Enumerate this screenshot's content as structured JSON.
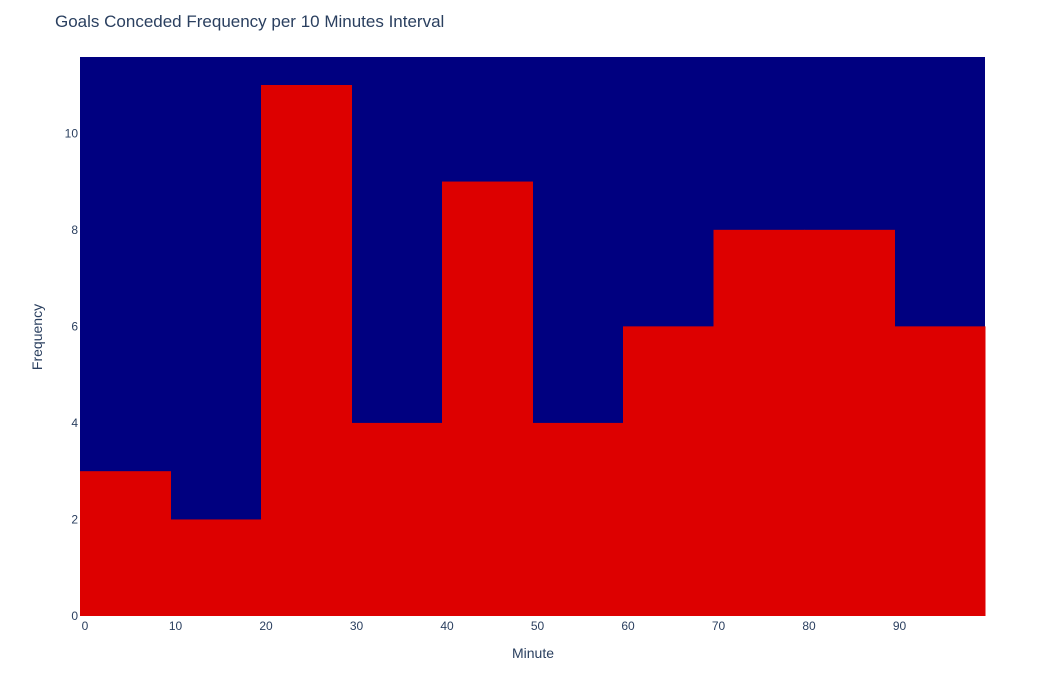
{
  "chart_data": {
    "type": "bar",
    "title": "Goals Conceded Frequency per 10 Minutes Interval",
    "xlabel": "Minute",
    "ylabel": "Frequency",
    "bins": [
      {
        "start": 0,
        "end": 10,
        "value": 3
      },
      {
        "start": 10,
        "end": 20,
        "value": 2
      },
      {
        "start": 20,
        "end": 30,
        "value": 11
      },
      {
        "start": 30,
        "end": 40,
        "value": 4
      },
      {
        "start": 40,
        "end": 50,
        "value": 9
      },
      {
        "start": 50,
        "end": 60,
        "value": 4
      },
      {
        "start": 60,
        "end": 70,
        "value": 6
      },
      {
        "start": 70,
        "end": 80,
        "value": 8
      },
      {
        "start": 80,
        "end": 90,
        "value": 8
      },
      {
        "start": 90,
        "end": 100,
        "value": 6
      }
    ],
    "xlim": [
      0,
      100
    ],
    "ylim": [
      0,
      11.58
    ],
    "x_ticks": [
      "0",
      "10",
      "20",
      "30",
      "40",
      "50",
      "60",
      "70",
      "80",
      "90"
    ],
    "y_ticks": [
      "0",
      "2",
      "4",
      "6",
      "8",
      "10"
    ],
    "grid": false,
    "colors": {
      "plot_background": "#000080",
      "bar": "#dd0000"
    }
  }
}
